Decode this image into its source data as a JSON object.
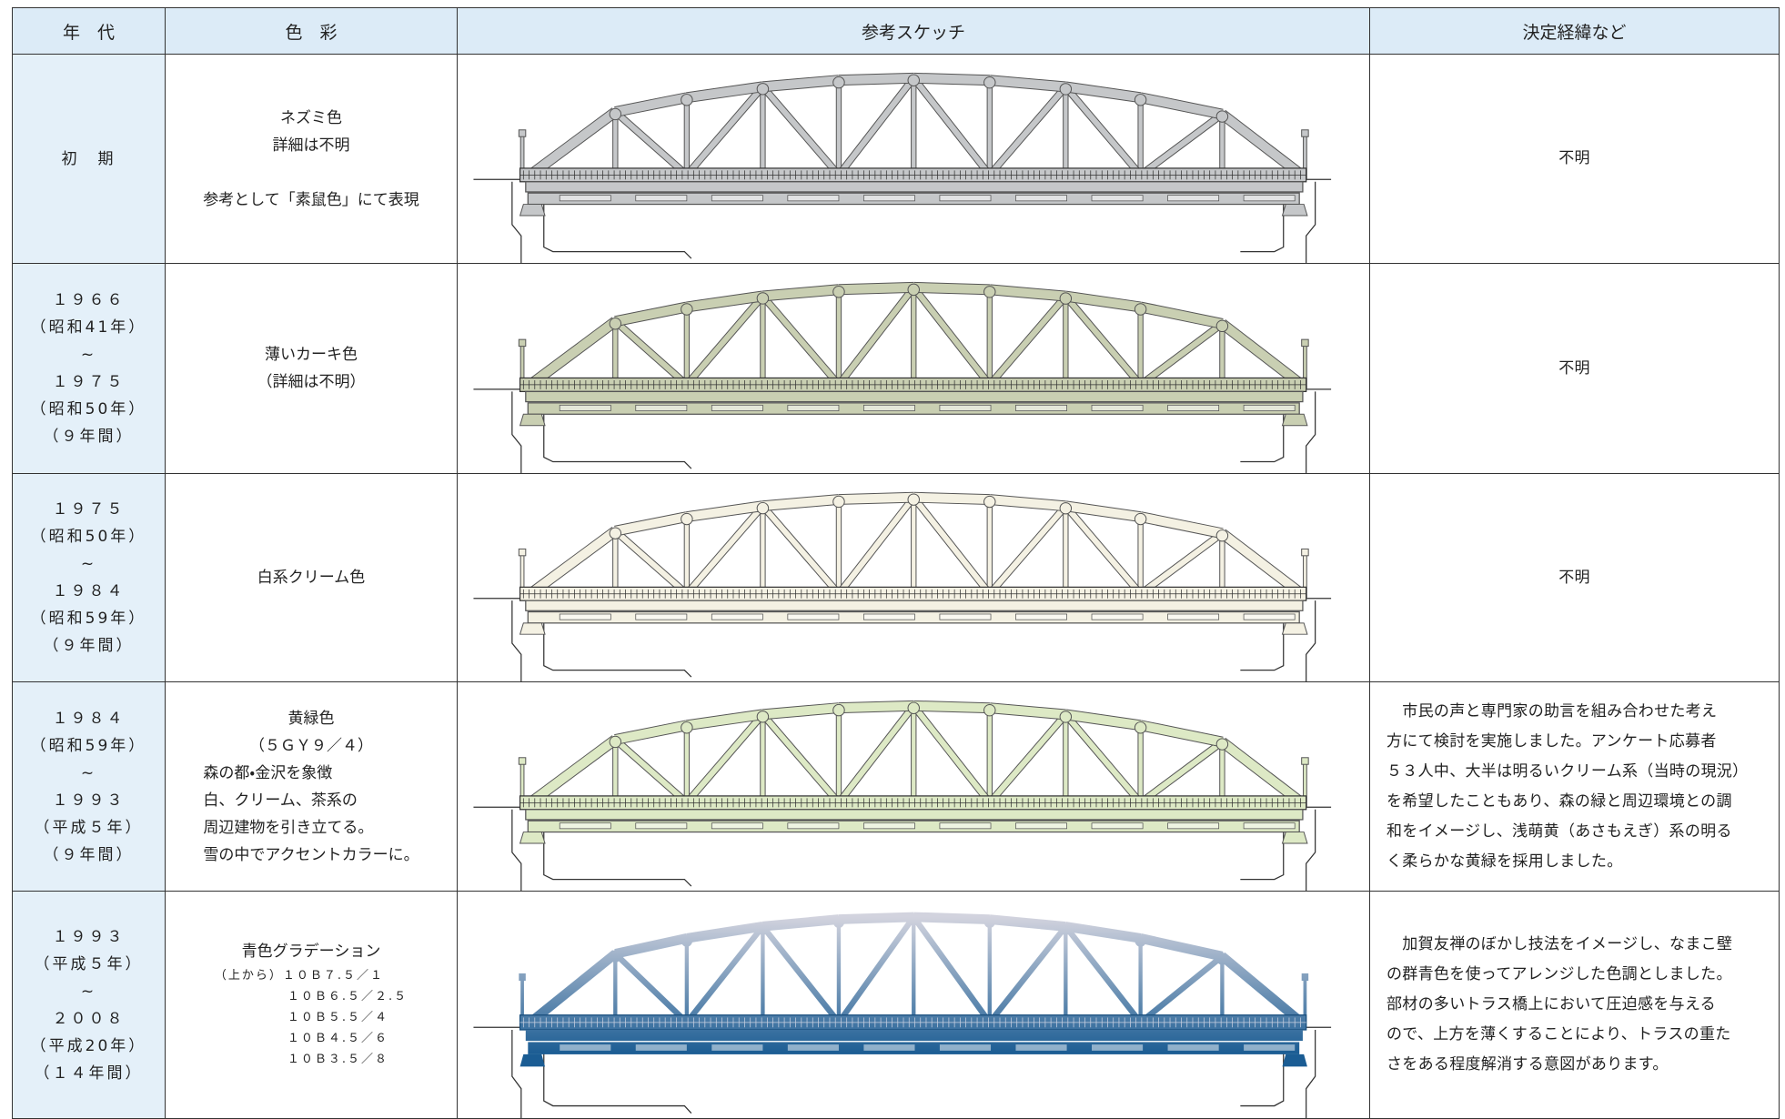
{
  "table": {
    "headers": [
      "年　代",
      "色　彩",
      "参考スケッチ",
      "決定経緯など"
    ],
    "rows": [
      {
        "period": [
          "初　期"
        ],
        "color": [
          "ネズミ色",
          "詳細は不明"
        ],
        "color_note": "参考として「素鼠色」にて表現",
        "sketch_colors": [
          "#c5c7c9"
        ],
        "decision": [
          "不明"
        ]
      },
      {
        "period": [
          "１９６６",
          "（昭和41年）",
          "~",
          "１９７５",
          "（昭和50年）",
          "（９年間）"
        ],
        "color": [
          "薄いカーキ色",
          "（詳細は不明）"
        ],
        "sketch_colors": [
          "#c9cfb2"
        ],
        "decision": [
          "不明"
        ]
      },
      {
        "period": [
          "１９７５",
          "（昭和50年）",
          "~",
          "１９８４",
          "（昭和59年）",
          "（９年間）"
        ],
        "color": [
          "白系クリーム色"
        ],
        "sketch_colors": [
          "#f4f1e3"
        ],
        "decision": [
          "不明"
        ]
      },
      {
        "period": [
          "１９８４",
          "（昭和59年）",
          "~",
          "１９９３",
          "（平成５年）",
          "（９年間）"
        ],
        "color": [
          "黄緑色",
          "（５ＧＹ９／４）"
        ],
        "color_details": [
          "森の都・金沢を象徴",
          "白、クリーム、茶系の",
          "周辺建物を引き立てる。",
          "雪の中でアクセントカラーに。"
        ],
        "sketch_colors": [
          "#dde9c5"
        ],
        "decision": [
          "　市民の声と専門家の助言を組み合わせた考え",
          "方にて検討を実施しました。アンケート応募者",
          "５３人中、大半は明るいクリーム系（当時の現況）",
          "を希望したこともあり、森の緑と周辺環境との調",
          "和をイメージし、浅萌黄（あさもえぎ）系の明る",
          "く柔らかな黄緑を採用しました。"
        ]
      },
      {
        "period": [
          "１９９３",
          "（平成５年）",
          "~",
          "２００８",
          "（平成20年）",
          "（１４年間）"
        ],
        "color": [
          "青色グラデーション"
        ],
        "color_details": [
          "（上から）１０Ｂ７.５／１",
          "１０Ｂ６.５／２.５",
          "１０Ｂ５.５／４",
          "１０Ｂ４.５／６",
          "１０Ｂ３.５／８"
        ],
        "sketch_colors": [
          "#d2d3de",
          "#1a5c93"
        ],
        "decision": [
          "　加賀友禅のぼかし技法をイメージし、なまこ壁",
          "の群青色を使ってアレンジした色調としました。",
          "部材の多いトラス橋上において圧迫感を与える",
          "ので、上方を薄くすることにより、トラスの重た",
          "さをある程度解消する意図があります。"
        ]
      }
    ]
  }
}
